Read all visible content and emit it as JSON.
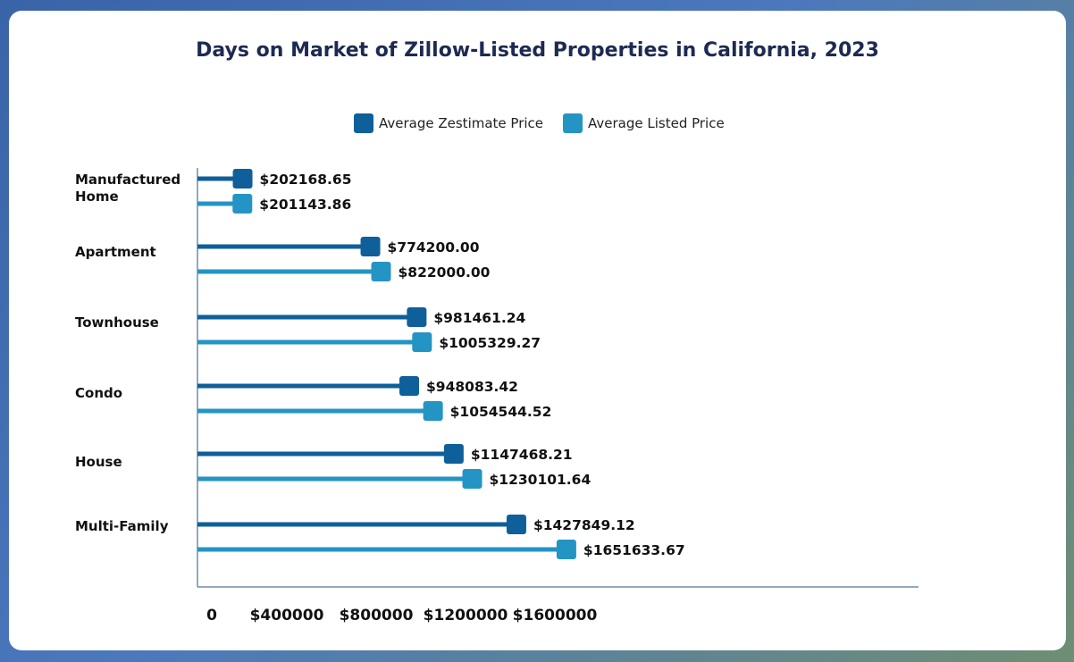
{
  "colors": {
    "zestimate": "#0f5f9a",
    "listed": "#2494c4",
    "axis": "#6f8eae",
    "text": "#111111",
    "title": "#1d2a52"
  },
  "chart_data": {
    "type": "bar",
    "title": "Days on Market of Zillow-Listed Properties in California, 2023",
    "categories": [
      "Manufactured Home",
      "Apartment",
      "Townhouse",
      "Condo",
      "House",
      "Multi-Family"
    ],
    "series": [
      {
        "name": "Average Zestimate Price",
        "values": [
          202168.65,
          774200.0,
          981461.24,
          948083.42,
          1147468.21,
          1427849.12
        ],
        "labels": [
          "$202168.65",
          "$774200.00",
          "$981461.24",
          "$948083.42",
          "$1147468.21",
          "$1427849.12"
        ]
      },
      {
        "name": "Average Listed Price",
        "values": [
          201143.86,
          822000.0,
          1005329.27,
          1054544.52,
          1230101.64,
          1651633.67
        ],
        "labels": [
          "$201143.86",
          "$822000.00",
          "$1005329.27",
          "$1054544.52",
          "$1230101.64",
          "$1651633.67"
        ]
      }
    ],
    "x_ticks": [
      "0",
      "$400000",
      "$800000",
      "$1200000",
      "$1600000"
    ],
    "xlim": [
      0,
      1700000
    ],
    "legend": "top-center",
    "grid": false
  }
}
